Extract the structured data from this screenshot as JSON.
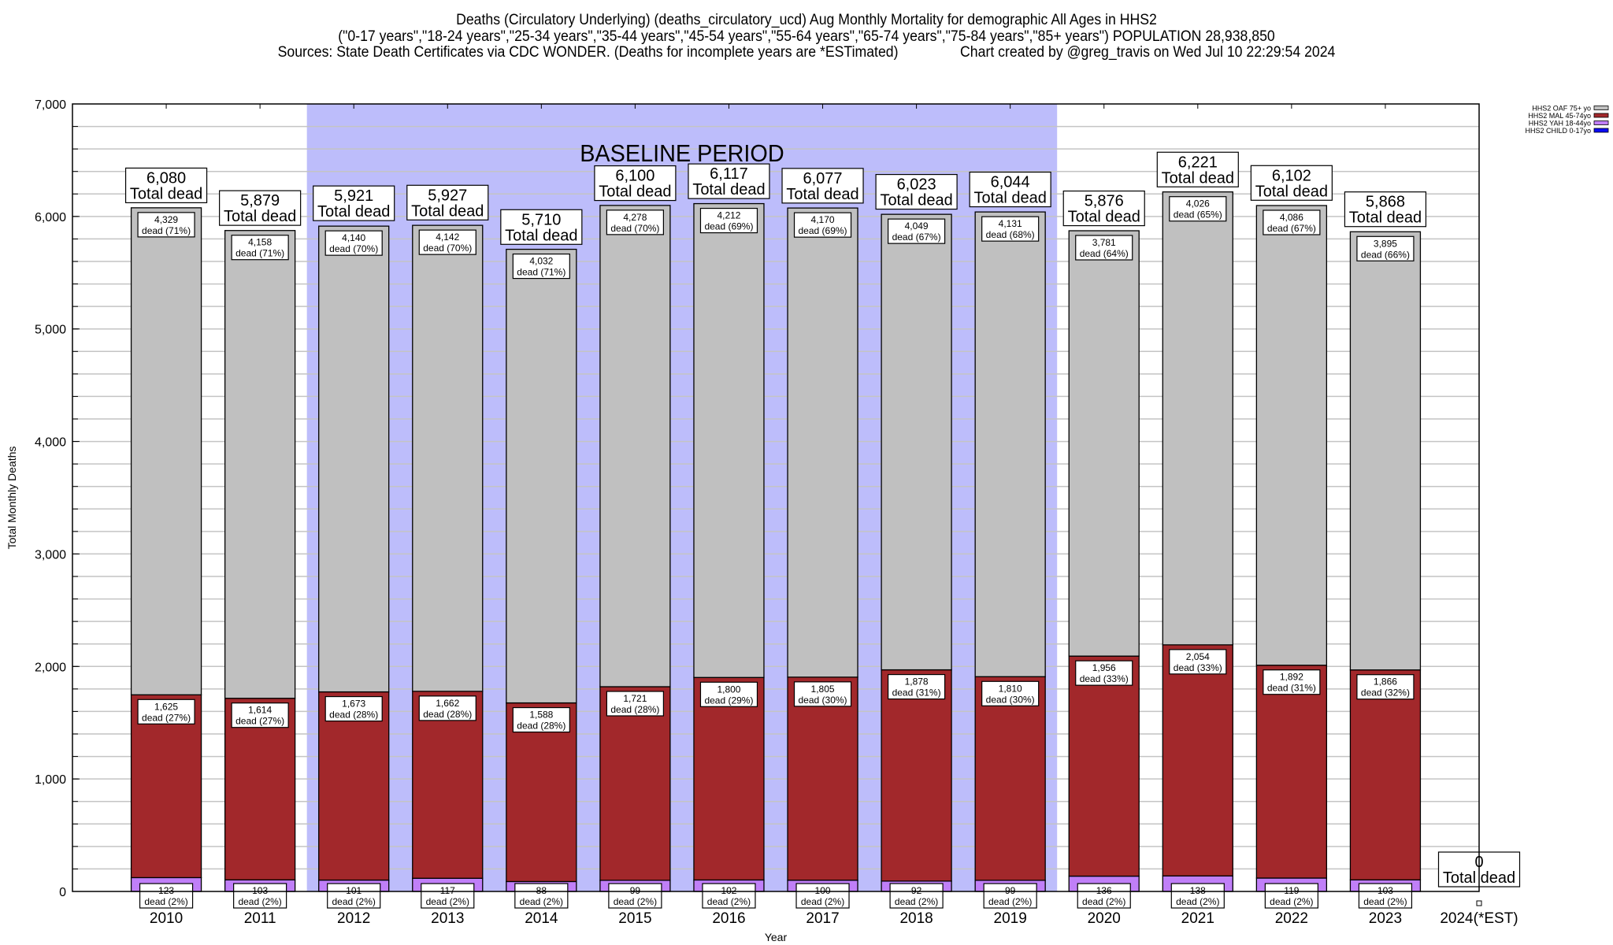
{
  "header": {
    "title_line1": "Deaths (Circulatory Underlying) (deaths_circulatory_ucd) Aug Monthly Mortality for demographic All Ages in HHS2",
    "title_line2": "(\"0-17 years\",\"18-24 years\",\"25-34 years\",\"35-44 years\",\"45-54 years\",\"55-64 years\",\"65-74 years\",\"75-84 years\",\"85+ years\") POPULATION 28,938,850",
    "title_line3": "Sources: State Death Certificates via CDC WONDER. (Deaths for incomplete years are *ESTimated)                Chart created by @greg_travis on Wed Jul 10 22:29:54 2024"
  },
  "chart_data": {
    "type": "bar",
    "stacked": true,
    "title": "Deaths (Circulatory Underlying) (deaths_circulatory_ucd) Aug Monthly Mortality for demographic All Ages in HHS2",
    "xlabel": "Year",
    "ylabel": "Total Monthly Deaths",
    "ylim": [
      0,
      7000
    ],
    "yticks": [
      0,
      1000,
      2000,
      3000,
      4000,
      5000,
      6000,
      7000
    ],
    "ytick_labels": [
      "0",
      "1,000",
      "2,000",
      "3,000",
      "4,000",
      "5,000",
      "6,000",
      "7,000"
    ],
    "minor_grid_step": 200,
    "grid": true,
    "categories": [
      "2010",
      "2011",
      "2012",
      "2013",
      "2014",
      "2015",
      "2016",
      "2017",
      "2018",
      "2019",
      "2020",
      "2021",
      "2022",
      "2023",
      "2024(*EST)"
    ],
    "annotation": {
      "text": "BASELINE PERIOD",
      "from": "2012",
      "to": "2019",
      "color": "#bdbdfb"
    },
    "legend": {
      "position": "top-right"
    },
    "series": [
      {
        "name": "HHS2 CHILD 0-17yo",
        "color": "#0a0af5",
        "values": [
          0,
          0,
          0,
          0,
          0,
          0,
          0,
          0,
          0,
          0,
          0,
          0,
          0,
          0,
          0
        ],
        "pct": [
          "",
          "",
          "",
          "",
          "",
          "",
          "",
          "",
          "",
          "",
          "",
          "",
          "",
          "",
          ""
        ]
      },
      {
        "name": "HHS2 YAH 18-44yo",
        "color": "#c07ff8",
        "values": [
          123,
          103,
          101,
          117,
          88,
          99,
          102,
          100,
          92,
          99,
          136,
          138,
          119,
          103,
          0
        ],
        "pct": [
          "2%",
          "2%",
          "2%",
          "2%",
          "2%",
          "2%",
          "2%",
          "2%",
          "2%",
          "2%",
          "2%",
          "2%",
          "2%",
          "2%",
          ""
        ]
      },
      {
        "name": "HHS2 MAL 45-74yo",
        "color": "#a2282b",
        "values": [
          1625,
          1614,
          1673,
          1662,
          1588,
          1721,
          1800,
          1805,
          1878,
          1810,
          1956,
          2054,
          1892,
          1866,
          0
        ],
        "pct": [
          "27%",
          "27%",
          "28%",
          "28%",
          "28%",
          "28%",
          "29%",
          "30%",
          "31%",
          "30%",
          "33%",
          "33%",
          "31%",
          "32%",
          ""
        ]
      },
      {
        "name": "HHS2 OAF 75+ yo",
        "color": "#c0c0c0",
        "values": [
          4329,
          4158,
          4140,
          4142,
          4032,
          4278,
          4212,
          4170,
          4049,
          4131,
          3781,
          4026,
          4086,
          3895,
          0
        ],
        "pct": [
          "71%",
          "71%",
          "70%",
          "70%",
          "71%",
          "70%",
          "69%",
          "69%",
          "67%",
          "68%",
          "64%",
          "65%",
          "67%",
          "66%",
          ""
        ]
      }
    ],
    "totals": [
      6080,
      5879,
      5921,
      5927,
      5710,
      6100,
      6117,
      6077,
      6023,
      6044,
      5876,
      6221,
      6102,
      5868,
      0
    ],
    "total_suffix": "Total dead",
    "segment_suffix": "dead"
  }
}
